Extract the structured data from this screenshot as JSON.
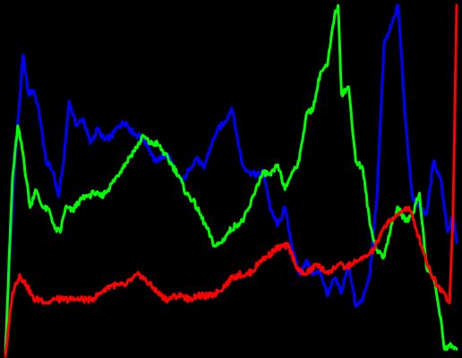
{
  "chart_data": {
    "type": "line",
    "background": "#000000",
    "xlim": [
      0,
      255
    ],
    "ylim": [
      0,
      1
    ],
    "grid": false,
    "legend": "none",
    "series": [
      {
        "color": "#0000ff",
        "points": [
          [
            0,
            0.03
          ],
          [
            5,
            0.52
          ],
          [
            10,
            0.85
          ],
          [
            13,
            0.74
          ],
          [
            16,
            0.75
          ],
          [
            19,
            0.69
          ],
          [
            23,
            0.55
          ],
          [
            27,
            0.52
          ],
          [
            30,
            0.45
          ],
          [
            33,
            0.55
          ],
          [
            36,
            0.72
          ],
          [
            40,
            0.65
          ],
          [
            44,
            0.67
          ],
          [
            48,
            0.6
          ],
          [
            52,
            0.64
          ],
          [
            56,
            0.61
          ],
          [
            60,
            0.62
          ],
          [
            64,
            0.65
          ],
          [
            68,
            0.66
          ],
          [
            72,
            0.63
          ],
          [
            76,
            0.62
          ],
          [
            80,
            0.6
          ],
          [
            84,
            0.55
          ],
          [
            88,
            0.56
          ],
          [
            92,
            0.57
          ],
          [
            96,
            0.52
          ],
          [
            100,
            0.49
          ],
          [
            104,
            0.53
          ],
          [
            108,
            0.56
          ],
          [
            112,
            0.53
          ],
          [
            116,
            0.59
          ],
          [
            120,
            0.64
          ],
          [
            124,
            0.66
          ],
          [
            128,
            0.7
          ],
          [
            131,
            0.62
          ],
          [
            134,
            0.54
          ],
          [
            138,
            0.52
          ],
          [
            142,
            0.51
          ],
          [
            146,
            0.52
          ],
          [
            150,
            0.41
          ],
          [
            154,
            0.37
          ],
          [
            158,
            0.42
          ],
          [
            162,
            0.31
          ],
          [
            166,
            0.23
          ],
          [
            170,
            0.27
          ],
          [
            174,
            0.23
          ],
          [
            178,
            0.24
          ],
          [
            182,
            0.17
          ],
          [
            186,
            0.22
          ],
          [
            190,
            0.18
          ],
          [
            194,
            0.26
          ],
          [
            198,
            0.14
          ],
          [
            202,
            0.16
          ],
          [
            206,
            0.23
          ],
          [
            210,
            0.45
          ],
          [
            214,
            0.88
          ],
          [
            218,
            0.93
          ],
          [
            222,
            0.99
          ],
          [
            226,
            0.67
          ],
          [
            230,
            0.45
          ],
          [
            234,
            0.42
          ],
          [
            238,
            0.4
          ],
          [
            242,
            0.55
          ],
          [
            246,
            0.5
          ],
          [
            250,
            0.35
          ],
          [
            253,
            0.4
          ],
          [
            255,
            0.32
          ]
        ]
      },
      {
        "color": "#00ff00",
        "points": [
          [
            0,
            0.01
          ],
          [
            4,
            0.5
          ],
          [
            7,
            0.65
          ],
          [
            10,
            0.57
          ],
          [
            14,
            0.42
          ],
          [
            17,
            0.47
          ],
          [
            21,
            0.42
          ],
          [
            25,
            0.41
          ],
          [
            28,
            0.36
          ],
          [
            31,
            0.35
          ],
          [
            34,
            0.42
          ],
          [
            38,
            0.41
          ],
          [
            42,
            0.44
          ],
          [
            46,
            0.45
          ],
          [
            50,
            0.46
          ],
          [
            54,
            0.45
          ],
          [
            58,
            0.47
          ],
          [
            62,
            0.5
          ],
          [
            66,
            0.53
          ],
          [
            70,
            0.56
          ],
          [
            74,
            0.59
          ],
          [
            78,
            0.62
          ],
          [
            82,
            0.6
          ],
          [
            86,
            0.6
          ],
          [
            90,
            0.57
          ],
          [
            94,
            0.54
          ],
          [
            98,
            0.51
          ],
          [
            102,
            0.46
          ],
          [
            106,
            0.44
          ],
          [
            110,
            0.4
          ],
          [
            114,
            0.36
          ],
          [
            118,
            0.31
          ],
          [
            122,
            0.32
          ],
          [
            126,
            0.35
          ],
          [
            130,
            0.37
          ],
          [
            134,
            0.38
          ],
          [
            138,
            0.42
          ],
          [
            142,
            0.48
          ],
          [
            146,
            0.52
          ],
          [
            150,
            0.51
          ],
          [
            154,
            0.54
          ],
          [
            158,
            0.47
          ],
          [
            162,
            0.52
          ],
          [
            166,
            0.55
          ],
          [
            170,
            0.68
          ],
          [
            174,
            0.7
          ],
          [
            178,
            0.8
          ],
          [
            182,
            0.82
          ],
          [
            186,
            0.96
          ],
          [
            188,
            0.99
          ],
          [
            190,
            0.74
          ],
          [
            194,
            0.76
          ],
          [
            198,
            0.55
          ],
          [
            202,
            0.53
          ],
          [
            206,
            0.37
          ],
          [
            210,
            0.3
          ],
          [
            214,
            0.28
          ],
          [
            218,
            0.37
          ],
          [
            222,
            0.42
          ],
          [
            226,
            0.38
          ],
          [
            230,
            0.4
          ],
          [
            234,
            0.46
          ],
          [
            238,
            0.25
          ],
          [
            242,
            0.22
          ],
          [
            246,
            0.11
          ],
          [
            248,
            0.02
          ],
          [
            251,
            0.03
          ],
          [
            255,
            0.02
          ]
        ]
      },
      {
        "color": "#ff0000",
        "points": [
          [
            0,
            0.0
          ],
          [
            4,
            0.18
          ],
          [
            8,
            0.23
          ],
          [
            12,
            0.2
          ],
          [
            16,
            0.16
          ],
          [
            20,
            0.16
          ],
          [
            24,
            0.15
          ],
          [
            28,
            0.16
          ],
          [
            32,
            0.16
          ],
          [
            36,
            0.16
          ],
          [
            40,
            0.16
          ],
          [
            44,
            0.16
          ],
          [
            48,
            0.16
          ],
          [
            52,
            0.17
          ],
          [
            56,
            0.19
          ],
          [
            60,
            0.2
          ],
          [
            64,
            0.2
          ],
          [
            68,
            0.2
          ],
          [
            72,
            0.22
          ],
          [
            76,
            0.23
          ],
          [
            80,
            0.21
          ],
          [
            84,
            0.19
          ],
          [
            88,
            0.17
          ],
          [
            92,
            0.16
          ],
          [
            96,
            0.17
          ],
          [
            100,
            0.17
          ],
          [
            104,
            0.16
          ],
          [
            108,
            0.17
          ],
          [
            112,
            0.17
          ],
          [
            116,
            0.17
          ],
          [
            120,
            0.18
          ],
          [
            124,
            0.2
          ],
          [
            128,
            0.22
          ],
          [
            132,
            0.23
          ],
          [
            136,
            0.23
          ],
          [
            140,
            0.24
          ],
          [
            144,
            0.27
          ],
          [
            148,
            0.28
          ],
          [
            152,
            0.3
          ],
          [
            156,
            0.31
          ],
          [
            160,
            0.31
          ],
          [
            164,
            0.26
          ],
          [
            168,
            0.23
          ],
          [
            172,
            0.24
          ],
          [
            176,
            0.26
          ],
          [
            180,
            0.24
          ],
          [
            184,
            0.24
          ],
          [
            188,
            0.26
          ],
          [
            192,
            0.25
          ],
          [
            196,
            0.26
          ],
          [
            200,
            0.27
          ],
          [
            204,
            0.28
          ],
          [
            208,
            0.3
          ],
          [
            212,
            0.34
          ],
          [
            216,
            0.38
          ],
          [
            220,
            0.39
          ],
          [
            224,
            0.41
          ],
          [
            228,
            0.42
          ],
          [
            232,
            0.36
          ],
          [
            236,
            0.3
          ],
          [
            240,
            0.24
          ],
          [
            244,
            0.2
          ],
          [
            248,
            0.18
          ],
          [
            251,
            0.15
          ],
          [
            253,
            0.4
          ],
          [
            255,
            0.99
          ]
        ]
      }
    ]
  }
}
